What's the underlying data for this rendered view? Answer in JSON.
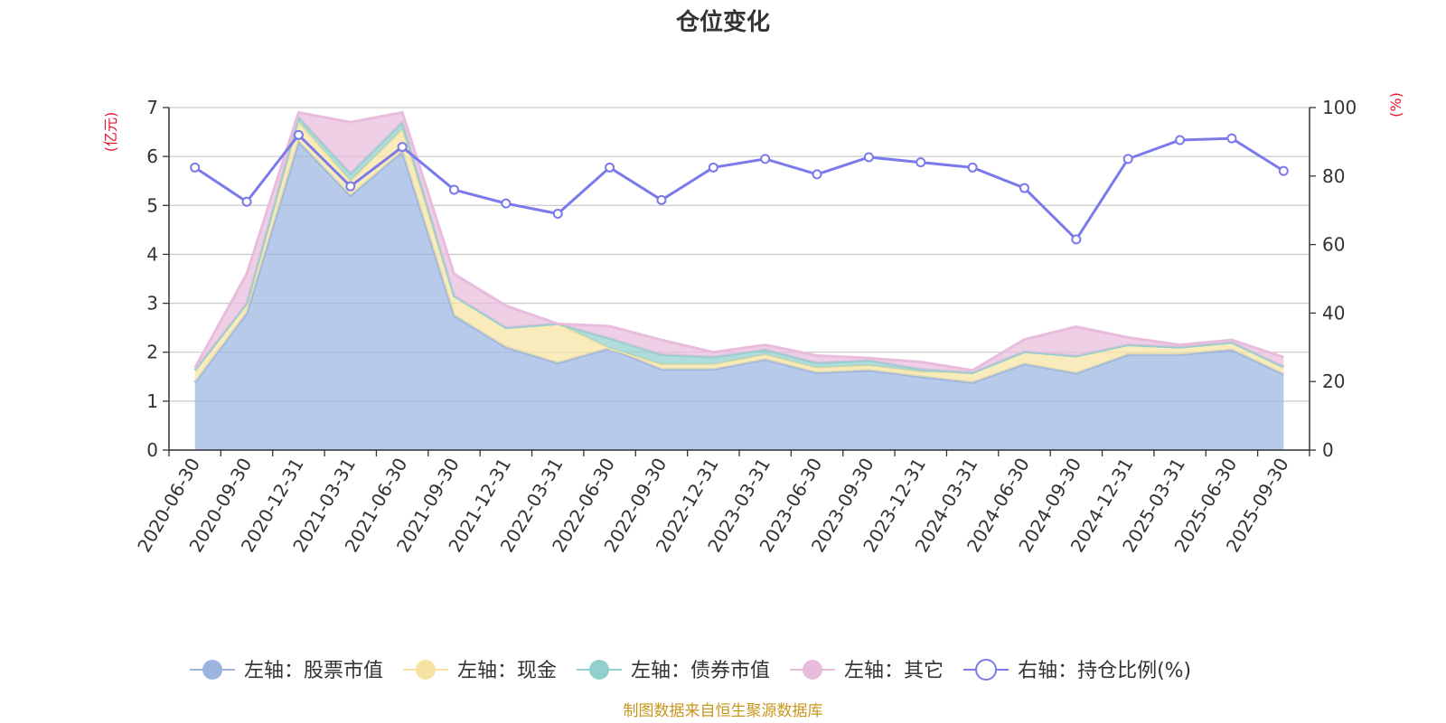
{
  "chart_data": {
    "type": "area",
    "title": "仓位变化",
    "y_left_unit": "(亿元)",
    "y_right_unit": "(%)",
    "y_left_ticks": [
      "0",
      "1",
      "2",
      "3",
      "4",
      "5",
      "6",
      "7"
    ],
    "y_right_ticks": [
      "0",
      "20",
      "40",
      "60",
      "80",
      "100"
    ],
    "ylim_left": [
      0,
      7
    ],
    "ylim_right": [
      0,
      100
    ],
    "grid": true,
    "legend_position": "bottom",
    "categories": [
      "2020-06-30",
      "2020-09-30",
      "2020-12-31",
      "2021-03-31",
      "2021-06-30",
      "2021-09-30",
      "2021-12-31",
      "2022-03-31",
      "2022-06-30",
      "2022-09-30",
      "2022-12-31",
      "2023-03-31",
      "2023-06-30",
      "2023-09-30",
      "2023-12-31",
      "2024-03-31",
      "2024-06-30",
      "2024-09-30",
      "2024-12-31",
      "2025-03-31",
      "2025-06-30",
      "2025-09-30"
    ],
    "series": [
      {
        "name": "左轴：股票市值",
        "axis": "left",
        "stack": true,
        "color": "#9bb5e0",
        "values": [
          1.38,
          2.8,
          6.3,
          5.2,
          6.1,
          2.75,
          2.1,
          1.78,
          2.08,
          1.65,
          1.65,
          1.85,
          1.58,
          1.63,
          1.5,
          1.38,
          1.76,
          1.57,
          1.95,
          1.95,
          2.05,
          1.55
        ]
      },
      {
        "name": "左轴：现金",
        "axis": "left",
        "stack": true,
        "color": "#f7e3a1",
        "values": [
          0.25,
          0.2,
          0.4,
          0.3,
          0.45,
          0.4,
          0.4,
          0.8,
          0.0,
          0.1,
          0.1,
          0.1,
          0.1,
          0.1,
          0.1,
          0.2,
          0.25,
          0.35,
          0.2,
          0.15,
          0.15,
          0.15
        ]
      },
      {
        "name": "左轴：债券市值",
        "axis": "left",
        "stack": true,
        "color": "#91d0cf",
        "values": [
          0.0,
          0.0,
          0.1,
          0.15,
          0.15,
          0.0,
          0.0,
          0.0,
          0.2,
          0.2,
          0.15,
          0.1,
          0.1,
          0.1,
          0.05,
          0.0,
          0.0,
          0.0,
          0.0,
          0.0,
          0.0,
          0.0
        ]
      },
      {
        "name": "左轴：其它",
        "axis": "left",
        "stack": true,
        "color": "#e8bcdc",
        "values": [
          0.05,
          0.6,
          0.1,
          1.05,
          0.2,
          0.45,
          0.45,
          0.0,
          0.25,
          0.3,
          0.1,
          0.1,
          0.15,
          0.05,
          0.15,
          0.05,
          0.25,
          0.6,
          0.15,
          0.05,
          0.05,
          0.2
        ]
      },
      {
        "name": "右轴：持仓比例(%)",
        "axis": "right",
        "type": "line",
        "color": "#7a7aeb",
        "values": [
          82.5,
          72.5,
          92,
          77,
          88.5,
          76,
          72,
          69,
          82.5,
          73,
          82.5,
          85,
          80.5,
          85.5,
          84,
          82.5,
          76.5,
          61.5,
          85,
          90.5,
          91,
          81.5
        ]
      }
    ]
  },
  "legend": [
    {
      "label": "左轴：股票市值"
    },
    {
      "label": "左轴：现金"
    },
    {
      "label": "左轴：债券市值"
    },
    {
      "label": "左轴：其它"
    },
    {
      "label": "右轴：持仓比例(%)"
    }
  ],
  "source_note": "制图数据来自恒生聚源数据库"
}
